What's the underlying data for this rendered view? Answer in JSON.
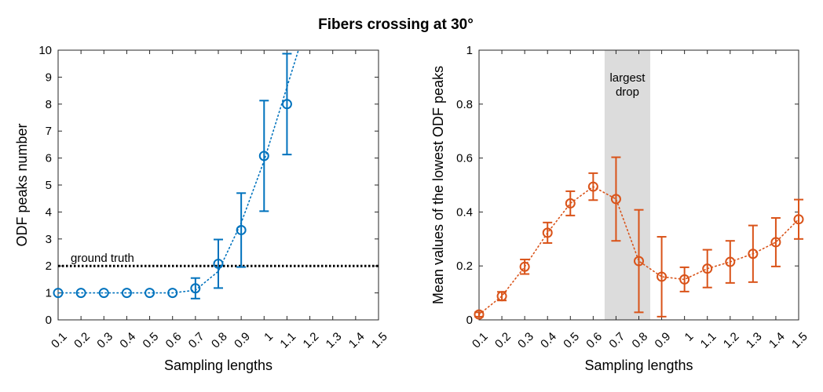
{
  "title": "Fibers crossing at 30°",
  "chart_data": [
    {
      "type": "line",
      "name": "left",
      "color": "#0072BD",
      "xlabel": "Sampling lengths",
      "ylabel": "ODF peaks number",
      "xlim": [
        0.1,
        1.5
      ],
      "ylim": [
        0,
        10
      ],
      "x_ticks": [
        "0.1",
        "0.2",
        "0.3",
        "0.4",
        "0.5",
        "0.6",
        "0.7",
        "0.8",
        "0.9",
        "1",
        "1.1",
        "1.2",
        "1.3",
        "1.4",
        "1.5"
      ],
      "y_ticks": [
        "0",
        "1",
        "2",
        "3",
        "4",
        "5",
        "6",
        "7",
        "8",
        "9",
        "10"
      ],
      "x": [
        0.1,
        0.2,
        0.3,
        0.4,
        0.5,
        0.6,
        0.7,
        0.8,
        0.9,
        1.0,
        1.1
      ],
      "y": [
        1.0,
        1.0,
        1.0,
        1.0,
        1.0,
        1.0,
        1.17,
        2.08,
        3.33,
        6.08,
        8.0
      ],
      "err": [
        0,
        0,
        0,
        0,
        0,
        0,
        0.38,
        0.9,
        1.37,
        2.05,
        1.87
      ],
      "trend_line": {
        "x": [
          0.1,
          0.6,
          0.7,
          0.8,
          0.9,
          1.0,
          1.15
        ],
        "y": [
          1.0,
          1.0,
          1.1,
          1.8,
          3.6,
          5.9,
          10.0
        ]
      },
      "reference_line": {
        "y": 2,
        "label": "ground truth"
      }
    },
    {
      "type": "line",
      "name": "right",
      "color": "#D95319",
      "xlabel": "Sampling lengths",
      "ylabel": "Mean values of the lowest ODF peaks",
      "xlim": [
        0.1,
        1.5
      ],
      "ylim": [
        0,
        1
      ],
      "x_ticks": [
        "0.1",
        "0.2",
        "0.3",
        "0.4",
        "0.5",
        "0.6",
        "0.7",
        "0.8",
        "0.9",
        "1",
        "1.1",
        "1.2",
        "1.3",
        "1.4",
        "1.5"
      ],
      "y_ticks": [
        "0",
        "0.2",
        "0.4",
        "0.6",
        "0.8",
        "1"
      ],
      "x": [
        0.1,
        0.2,
        0.3,
        0.4,
        0.5,
        0.6,
        0.7,
        0.8,
        0.9,
        1.0,
        1.1,
        1.2,
        1.3,
        1.4,
        1.5
      ],
      "y": [
        0.02,
        0.088,
        0.197,
        0.323,
        0.432,
        0.494,
        0.448,
        0.218,
        0.16,
        0.15,
        0.19,
        0.215,
        0.245,
        0.288,
        0.373
      ],
      "err": [
        0.008,
        0.016,
        0.027,
        0.038,
        0.045,
        0.05,
        0.155,
        0.19,
        0.148,
        0.045,
        0.07,
        0.078,
        0.105,
        0.09,
        0.073
      ],
      "highlight": {
        "x_range": [
          0.65,
          0.85
        ],
        "label_lines": [
          "largest",
          "drop"
        ],
        "color": "#dcdcdc"
      }
    }
  ]
}
